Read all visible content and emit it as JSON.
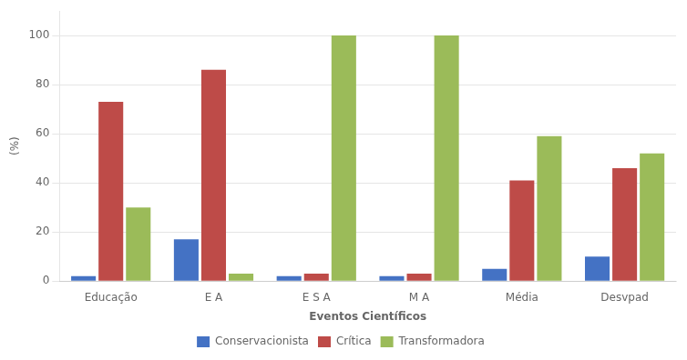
{
  "chart_data": {
    "type": "bar",
    "categories": [
      "Educação",
      "E A",
      "E S A",
      "M A",
      "Média",
      "Desvpad"
    ],
    "series": [
      {
        "name": "Conservacionista",
        "color": "#4472C4",
        "values": [
          2,
          17,
          2,
          2,
          5,
          10
        ]
      },
      {
        "name": "Crítica",
        "color": "#BE4B48",
        "values": [
          73,
          86,
          3,
          3,
          41,
          46
        ]
      },
      {
        "name": "Transformadora",
        "color": "#9BBB59",
        "values": [
          30,
          3,
          100,
          100,
          59,
          52
        ]
      }
    ],
    "xlabel": "Eventos Científicos",
    "ylabel": "(%)",
    "ylim": [
      0,
      110
    ],
    "yticks": [
      0,
      20,
      40,
      60,
      80,
      100
    ],
    "grid": true,
    "legend": "bottom"
  }
}
